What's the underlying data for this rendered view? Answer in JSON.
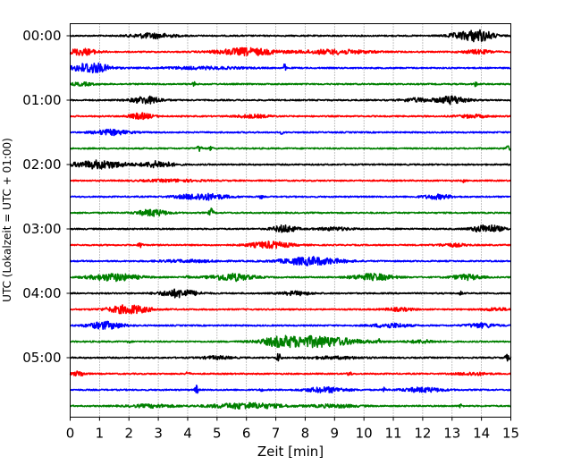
{
  "chart_data": {
    "type": "line",
    "subtype": "helicorder",
    "xlabel": "Zeit  [min]",
    "ylabel": "UTC (Lokalzeit = UTC + 01:00)",
    "xlim": [
      0,
      15
    ],
    "x_ticks": [
      "0",
      "1",
      "2",
      "3",
      "4",
      "5",
      "6",
      "7",
      "8",
      "9",
      "10",
      "11",
      "12",
      "13",
      "14",
      "15"
    ],
    "y_ticks": [
      "00:00",
      "01:00",
      "02:00",
      "03:00",
      "04:00",
      "05:00"
    ],
    "x_grid": "dotted",
    "trace_interval_min": 15,
    "trace_colors": [
      "#000000",
      "#ff0000",
      "#0000ff",
      "#008000"
    ],
    "traces": [
      {
        "start": "00:00",
        "color": "#000000",
        "events": [
          {
            "t": 2.8,
            "amp": 0.35,
            "width": 0.7
          },
          {
            "t": 13.9,
            "amp": 0.8,
            "width": 0.5
          },
          {
            "t": 13.2,
            "amp": 0.3,
            "width": 0.4
          }
        ]
      },
      {
        "start": "00:15",
        "color": "#ff0000",
        "events": [
          {
            "t": 0.4,
            "amp": 0.45,
            "width": 0.5
          },
          {
            "t": 6.0,
            "amp": 0.5,
            "width": 1.0
          },
          {
            "t": 9.0,
            "amp": 0.3,
            "width": 1.2
          },
          {
            "t": 13.9,
            "amp": 0.25,
            "width": 0.5
          }
        ]
      },
      {
        "start": "00:30",
        "color": "#0000ff",
        "events": [
          {
            "t": 0.7,
            "amp": 0.75,
            "width": 0.6
          },
          {
            "t": 7.3,
            "amp": 0.55,
            "width": 0.04
          },
          {
            "t": 4.5,
            "amp": 0.15,
            "width": 1.5
          }
        ]
      },
      {
        "start": "00:45",
        "color": "#008000",
        "events": [
          {
            "t": 0.4,
            "amp": 0.2,
            "width": 0.4
          },
          {
            "t": 4.2,
            "amp": 0.45,
            "width": 0.04
          },
          {
            "t": 13.8,
            "amp": 0.3,
            "width": 0.05
          }
        ]
      },
      {
        "start": "01:00",
        "color": "#000000",
        "events": [
          {
            "t": 2.6,
            "amp": 0.5,
            "width": 0.5
          },
          {
            "t": 13.0,
            "amp": 0.55,
            "width": 0.5
          },
          {
            "t": 11.8,
            "amp": 0.25,
            "width": 0.5
          }
        ]
      },
      {
        "start": "01:15",
        "color": "#ff0000",
        "events": [
          {
            "t": 2.4,
            "amp": 0.4,
            "width": 0.4
          },
          {
            "t": 6.2,
            "amp": 0.2,
            "width": 0.6
          },
          {
            "t": 13.7,
            "amp": 0.2,
            "width": 0.5
          }
        ]
      },
      {
        "start": "01:30",
        "color": "#0000ff",
        "events": [
          {
            "t": 1.4,
            "amp": 0.35,
            "width": 0.6
          },
          {
            "t": 7.2,
            "amp": 0.2,
            "width": 0.05
          }
        ]
      },
      {
        "start": "01:45",
        "color": "#008000",
        "events": [
          {
            "t": 4.4,
            "amp": 0.4,
            "width": 0.08
          },
          {
            "t": 4.8,
            "amp": 0.25,
            "width": 0.06
          },
          {
            "t": 14.9,
            "amp": 0.3,
            "width": 0.1
          }
        ]
      },
      {
        "start": "02:00",
        "color": "#000000",
        "events": [
          {
            "t": 1.0,
            "amp": 0.55,
            "width": 0.9
          },
          {
            "t": 3.0,
            "amp": 0.45,
            "width": 0.5
          }
        ]
      },
      {
        "start": "02:15",
        "color": "#ff0000",
        "events": [
          {
            "t": 3.5,
            "amp": 0.15,
            "width": 1.0
          },
          {
            "t": 13.4,
            "amp": 0.2,
            "width": 0.05
          }
        ]
      },
      {
        "start": "02:30",
        "color": "#0000ff",
        "events": [
          {
            "t": 4.5,
            "amp": 0.45,
            "width": 0.8
          },
          {
            "t": 6.5,
            "amp": 0.25,
            "width": 0.05
          },
          {
            "t": 12.5,
            "amp": 0.3,
            "width": 0.5
          }
        ]
      },
      {
        "start": "02:45",
        "color": "#008000",
        "events": [
          {
            "t": 2.8,
            "amp": 0.45,
            "width": 0.5
          },
          {
            "t": 4.8,
            "amp": 0.55,
            "width": 0.08
          }
        ]
      },
      {
        "start": "03:00",
        "color": "#000000",
        "events": [
          {
            "t": 7.3,
            "amp": 0.5,
            "width": 0.4
          },
          {
            "t": 9.0,
            "amp": 0.2,
            "width": 0.6
          },
          {
            "t": 14.2,
            "amp": 0.55,
            "width": 0.5
          }
        ]
      },
      {
        "start": "03:15",
        "color": "#ff0000",
        "events": [
          {
            "t": 2.4,
            "amp": 0.35,
            "width": 0.08
          },
          {
            "t": 6.8,
            "amp": 0.45,
            "width": 0.7
          },
          {
            "t": 13.0,
            "amp": 0.2,
            "width": 0.5
          }
        ]
      },
      {
        "start": "03:30",
        "color": "#0000ff",
        "events": [
          {
            "t": 8.2,
            "amp": 0.55,
            "width": 1.0
          },
          {
            "t": 4.0,
            "amp": 0.15,
            "width": 1.0
          }
        ]
      },
      {
        "start": "03:45",
        "color": "#008000",
        "events": [
          {
            "t": 1.5,
            "amp": 0.5,
            "width": 0.8
          },
          {
            "t": 5.5,
            "amp": 0.5,
            "width": 0.7
          },
          {
            "t": 10.3,
            "amp": 0.45,
            "width": 0.7
          },
          {
            "t": 13.5,
            "amp": 0.35,
            "width": 0.5
          },
          {
            "t": 4.0,
            "amp": 0.3,
            "width": 0.05
          }
        ]
      },
      {
        "start": "04:00",
        "color": "#000000",
        "events": [
          {
            "t": 3.7,
            "amp": 0.55,
            "width": 0.6
          },
          {
            "t": 7.7,
            "amp": 0.25,
            "width": 0.5
          },
          {
            "t": 13.3,
            "amp": 0.3,
            "width": 0.05
          }
        ]
      },
      {
        "start": "04:15",
        "color": "#ff0000",
        "events": [
          {
            "t": 2.0,
            "amp": 0.6,
            "width": 0.7
          },
          {
            "t": 11.2,
            "amp": 0.2,
            "width": 0.5
          },
          {
            "t": 14.5,
            "amp": 0.2,
            "width": 0.4
          }
        ]
      },
      {
        "start": "04:30",
        "color": "#0000ff",
        "events": [
          {
            "t": 1.2,
            "amp": 0.5,
            "width": 0.6
          },
          {
            "t": 10.9,
            "amp": 0.3,
            "width": 0.6
          },
          {
            "t": 14.0,
            "amp": 0.3,
            "width": 0.5
          }
        ]
      },
      {
        "start": "04:45",
        "color": "#008000",
        "events": [
          {
            "t": 8.3,
            "amp": 0.75,
            "width": 1.4
          },
          {
            "t": 7.1,
            "amp": 0.4,
            "width": 0.5
          },
          {
            "t": 2.0,
            "amp": 0.2,
            "width": 0.05
          },
          {
            "t": 10.5,
            "amp": 0.45,
            "width": 0.05
          },
          {
            "t": 12.0,
            "amp": 0.2,
            "width": 0.5
          }
        ]
      },
      {
        "start": "05:00",
        "color": "#000000",
        "events": [
          {
            "t": 7.1,
            "amp": 0.6,
            "width": 0.08
          },
          {
            "t": 5.0,
            "amp": 0.2,
            "width": 0.5
          },
          {
            "t": 9.0,
            "amp": 0.15,
            "width": 1.0
          },
          {
            "t": 14.9,
            "amp": 0.4,
            "width": 0.1
          }
        ]
      },
      {
        "start": "05:15",
        "color": "#ff0000",
        "events": [
          {
            "t": 0.3,
            "amp": 0.35,
            "width": 0.2
          },
          {
            "t": 4.0,
            "amp": 0.35,
            "width": 0.06
          },
          {
            "t": 9.5,
            "amp": 0.45,
            "width": 0.06
          },
          {
            "t": 13.7,
            "amp": 0.2,
            "width": 0.5
          }
        ]
      },
      {
        "start": "05:30",
        "color": "#0000ff",
        "events": [
          {
            "t": 4.3,
            "amp": 0.6,
            "width": 0.06
          },
          {
            "t": 8.7,
            "amp": 0.35,
            "width": 0.7
          },
          {
            "t": 12.0,
            "amp": 0.3,
            "width": 0.7
          },
          {
            "t": 6.5,
            "amp": 0.25,
            "width": 0.05
          },
          {
            "t": 10.7,
            "amp": 0.3,
            "width": 0.05
          }
        ]
      },
      {
        "start": "05:45",
        "color": "#008000",
        "events": [
          {
            "t": 6.0,
            "amp": 0.4,
            "width": 1.2
          },
          {
            "t": 2.8,
            "amp": 0.2,
            "width": 0.8
          },
          {
            "t": 9.0,
            "amp": 0.2,
            "width": 0.8
          },
          {
            "t": 13.3,
            "amp": 0.3,
            "width": 0.05
          }
        ]
      }
    ]
  }
}
